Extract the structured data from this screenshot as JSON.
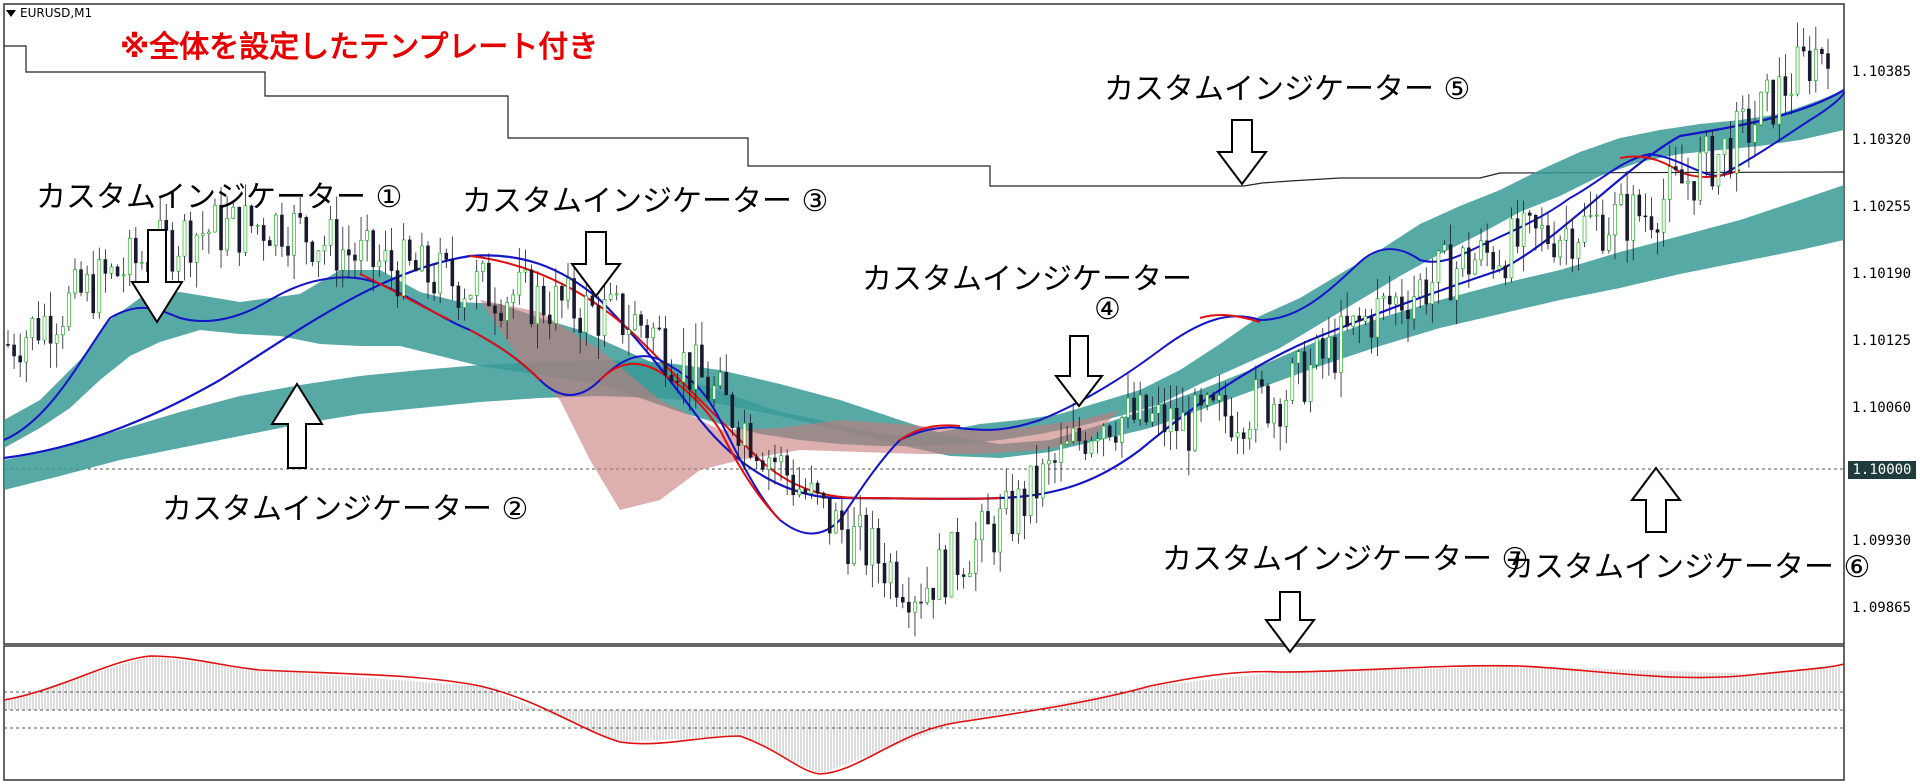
{
  "chart_header": {
    "symbol": "EURUSD,M1"
  },
  "template_note": "※全体を設定したテンプレート付き",
  "annotations": {
    "ind1": "カスタムインジケーター ①",
    "ind2": "カスタムインジケーター ②",
    "ind3": "カスタムインジケーター ③",
    "ind4_line1": "カスタムインジケーター",
    "ind4_line2": "④",
    "ind5": "カスタムインジケーター ⑤",
    "ind6": "カスタムインジケーター ⑥",
    "ind7": "カスタムインジケーター ⑦"
  },
  "price_axis": {
    "labels": [
      "1.10385",
      "1.10320",
      "1.10255",
      "1.10190",
      "1.10125",
      "1.10060",
      "1.09930",
      "1.09865"
    ],
    "highlight": "1.10000"
  },
  "colors": {
    "bull_candle": "#00aa00",
    "bear_candle": "#1a1a2e",
    "ma_blue": "#1414c8",
    "ma_red": "#e01010",
    "cloud_teal": "#3a9a96",
    "cloud_pink": "#c87a7a",
    "hist_gray": "#bbbbbb",
    "osc_red": "#e01010"
  },
  "chart_data": {
    "type": "line",
    "title": "",
    "xlabel": "",
    "ylabel": "",
    "ylim": [
      1.0983,
      1.1045
    ],
    "price_line": {
      "x": [
        0,
        5,
        10,
        15,
        20,
        25,
        30,
        35,
        40,
        45,
        50,
        55,
        60,
        65,
        70,
        75,
        80,
        85,
        90,
        95,
        100
      ],
      "values": [
        1.1012,
        1.1018,
        1.1023,
        1.1024,
        1.102,
        1.1018,
        1.1016,
        1.1014,
        1.1005,
        1.0995,
        1.0988,
        1.0995,
        1.1005,
        1.1004,
        1.1007,
        1.1015,
        1.102,
        1.1023,
        1.1025,
        1.1032,
        1.1042
      ]
    },
    "series": [
      {
        "name": "",
        "values": [
          1.1001,
          1.1006,
          1.1012,
          1.1018,
          1.102,
          1.1018,
          1.1014,
          1.101,
          1.1,
          1.0996,
          1.0997,
          1.1,
          1.1003,
          1.1005,
          1.101,
          1.1015,
          1.1019,
          1.1022,
          1.1028,
          1.1033,
          1.1038
        ]
      }
    ]
  }
}
